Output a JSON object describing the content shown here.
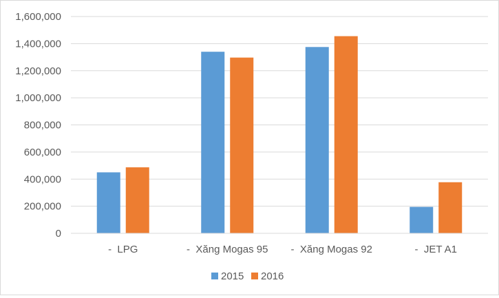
{
  "chart_data": {
    "type": "bar",
    "categories": [
      "-  LPG",
      "-  Xăng Mogas 95",
      "-  Xăng Mogas 92",
      "-  JET A1"
    ],
    "series": [
      {
        "name": "2015",
        "color": "#5b9bd5",
        "values": [
          450000,
          1340000,
          1375000,
          195000
        ]
      },
      {
        "name": "2016",
        "color": "#ed7d31",
        "values": [
          487000,
          1297000,
          1455000,
          377000
        ]
      }
    ],
    "ylim": [
      0,
      1600000
    ],
    "yticks": [
      "0",
      "200,000",
      "400,000",
      "600,000",
      "800,000",
      "1,000,000",
      "1,200,000",
      "1,400,000",
      "1,600,000"
    ],
    "grid": true,
    "legend_position": "bottom",
    "title": "",
    "xlabel": "",
    "ylabel": ""
  }
}
